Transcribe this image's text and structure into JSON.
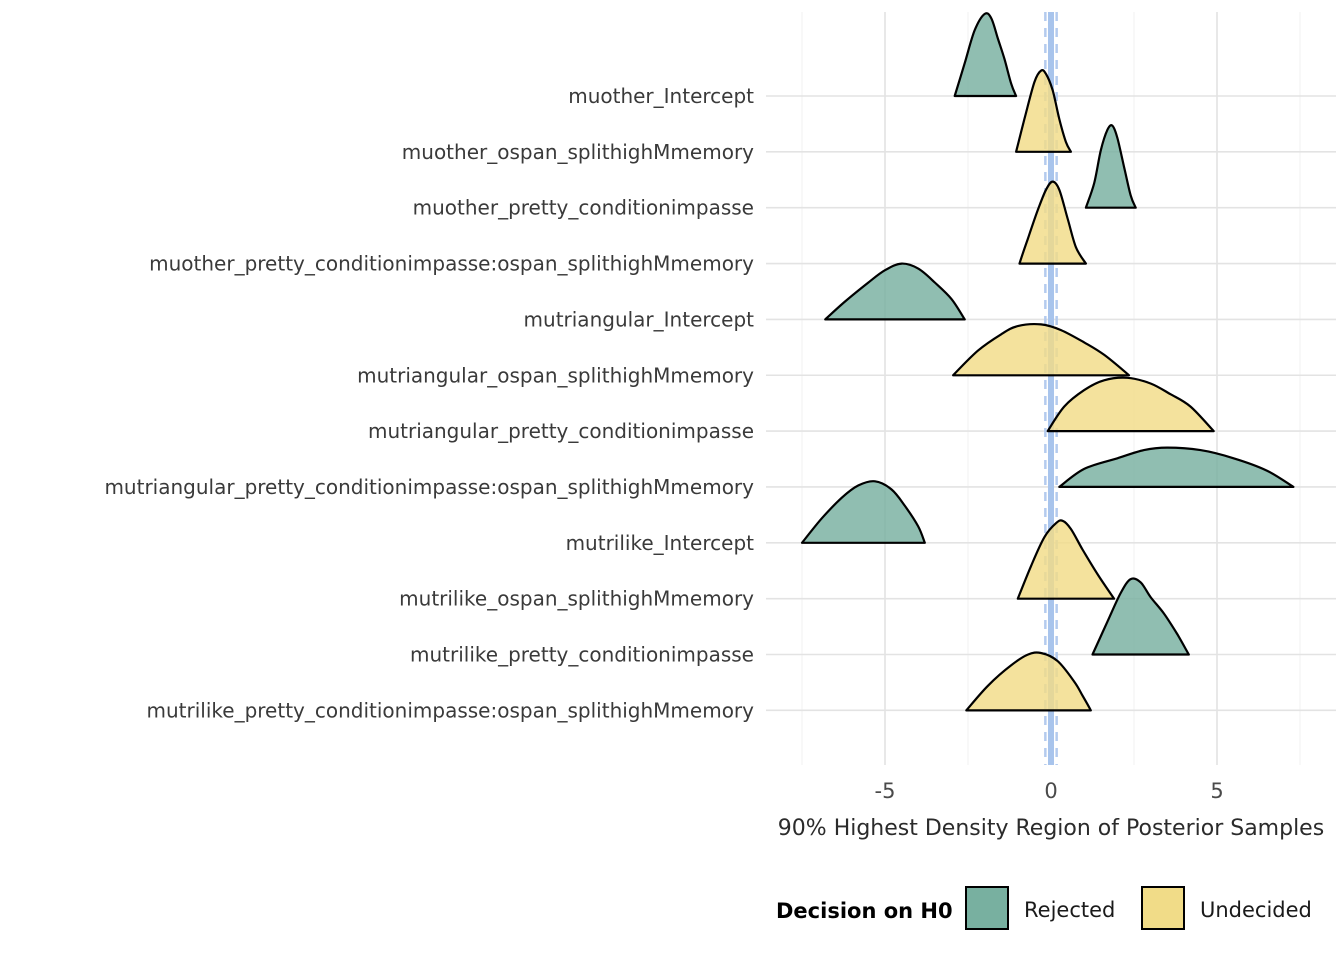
{
  "chart_data": {
    "type": "ridgeline",
    "xlabel": "90% Highest Density Region of Posterior Samples",
    "xlim": [
      -8.8,
      8.8
    ],
    "xticks": [
      {
        "value": -5,
        "label": "-5"
      },
      {
        "value": 0,
        "label": "0"
      },
      {
        "value": 5,
        "label": "5"
      }
    ],
    "rope": {
      "center": 0,
      "lower": -0.17,
      "upper": 0.17
    },
    "grid": true,
    "legend_position": "bottom",
    "legend": {
      "title": "Decision on H0",
      "items": [
        {
          "label": "Rejected",
          "color": "#78b0a0"
        },
        {
          "label": "Undecided",
          "color": "#f1dc88"
        }
      ]
    },
    "series": [
      {
        "name": "muother_Intercept",
        "decision": "Rejected",
        "x": [
          -2.9,
          -2.6,
          -2.3,
          -2.0,
          -1.8,
          -1.6,
          -1.4,
          -1.2,
          -1.05
        ],
        "density": [
          0.0,
          0.4,
          0.8,
          1.0,
          0.95,
          0.7,
          0.45,
          0.15,
          0.0
        ]
      },
      {
        "name": "muother_ospan_splithighMmemory",
        "decision": "Undecided",
        "x": [
          -1.05,
          -0.8,
          -0.5,
          -0.3,
          -0.15,
          0.05,
          0.25,
          0.45,
          0.6
        ],
        "density": [
          0.0,
          0.4,
          0.85,
          0.99,
          0.95,
          0.75,
          0.4,
          0.12,
          0.0
        ]
      },
      {
        "name": "muother_pretty_conditionimpasse",
        "decision": "Rejected",
        "x": [
          1.05,
          1.3,
          1.5,
          1.7,
          1.85,
          2.0,
          2.2,
          2.4,
          2.55
        ],
        "density": [
          0.0,
          0.3,
          0.7,
          0.95,
          1.0,
          0.85,
          0.5,
          0.15,
          0.0
        ]
      },
      {
        "name": "muother_pretty_conditionimpasse:ospan_splithighMmemory",
        "decision": "Undecided",
        "x": [
          -0.95,
          -0.7,
          -0.4,
          -0.15,
          0.05,
          0.25,
          0.5,
          0.75,
          1.05
        ],
        "density": [
          0.0,
          0.3,
          0.65,
          0.9,
          1.0,
          0.9,
          0.55,
          0.2,
          0.0
        ]
      },
      {
        "name": "mutriangular_Intercept",
        "decision": "Rejected",
        "x": [
          -6.8,
          -6.2,
          -5.5,
          -5.0,
          -4.5,
          -4.0,
          -3.5,
          -3.0,
          -2.6
        ],
        "density": [
          0.0,
          0.22,
          0.45,
          0.6,
          0.68,
          0.62,
          0.45,
          0.25,
          0.0
        ]
      },
      {
        "name": "mutriangular_ospan_splithighMmemory",
        "decision": "Undecided",
        "x": [
          -2.95,
          -2.2,
          -1.5,
          -1.0,
          -0.3,
          0.3,
          1.0,
          1.6,
          2.35
        ],
        "density": [
          0.0,
          0.3,
          0.5,
          0.6,
          0.62,
          0.55,
          0.4,
          0.25,
          0.0
        ]
      },
      {
        "name": "mutriangular_pretty_conditionimpasse",
        "decision": "Undecided",
        "x": [
          -0.1,
          0.4,
          1.0,
          1.6,
          2.3,
          3.0,
          3.6,
          4.2,
          4.9
        ],
        "density": [
          0.0,
          0.3,
          0.5,
          0.62,
          0.65,
          0.58,
          0.45,
          0.3,
          0.0
        ]
      },
      {
        "name": "mutriangular_pretty_conditionimpasse:ospan_splithighMmemory",
        "decision": "Rejected",
        "x": [
          0.25,
          1.0,
          2.0,
          2.8,
          3.5,
          4.5,
          5.5,
          6.5,
          7.3
        ],
        "density": [
          0.0,
          0.22,
          0.35,
          0.45,
          0.48,
          0.45,
          0.35,
          0.2,
          0.0
        ]
      },
      {
        "name": "mutrilike_Intercept",
        "decision": "Rejected",
        "x": [
          -7.5,
          -6.9,
          -6.3,
          -5.8,
          -5.3,
          -4.8,
          -4.4,
          -4.0,
          -3.8
        ],
        "density": [
          0.0,
          0.3,
          0.55,
          0.7,
          0.75,
          0.65,
          0.45,
          0.2,
          0.0
        ]
      },
      {
        "name": "mutrilike_ospan_splithighMmemory",
        "decision": "Undecided",
        "x": [
          -1.0,
          -0.6,
          -0.2,
          0.15,
          0.35,
          0.6,
          0.95,
          1.4,
          1.9
        ],
        "density": [
          0.0,
          0.4,
          0.75,
          0.92,
          0.95,
          0.85,
          0.6,
          0.3,
          0.0
        ]
      },
      {
        "name": "mutrilike_pretty_conditionimpasse",
        "decision": "Rejected",
        "x": [
          1.25,
          1.7,
          2.1,
          2.4,
          2.7,
          3.0,
          3.4,
          3.8,
          4.15
        ],
        "density": [
          0.0,
          0.4,
          0.75,
          0.92,
          0.88,
          0.7,
          0.5,
          0.25,
          0.0
        ]
      },
      {
        "name": "mutrilike_pretty_conditionimpasse:ospan_splithighMmemory",
        "decision": "Undecided",
        "x": [
          -2.55,
          -1.9,
          -1.2,
          -0.7,
          -0.3,
          0.2,
          0.7,
          0.95,
          1.2
        ],
        "density": [
          0.0,
          0.3,
          0.55,
          0.68,
          0.7,
          0.6,
          0.35,
          0.18,
          0.0
        ]
      }
    ]
  }
}
